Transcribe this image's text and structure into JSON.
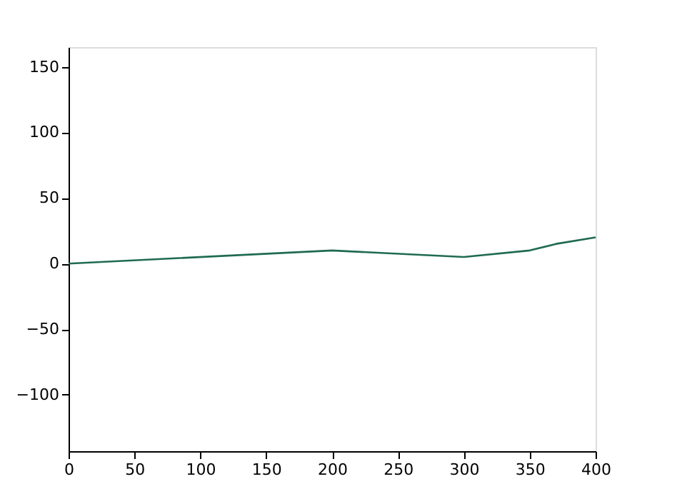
{
  "chart_data": {
    "type": "line",
    "x": [
      0,
      200,
      300,
      350,
      370,
      400
    ],
    "series": [
      {
        "color": "#1f6b4f",
        "values": [
          0,
          10,
          5,
          10,
          15,
          20
        ]
      }
    ],
    "xlim": [
      0,
      400
    ],
    "xticks": [
      0,
      50,
      100,
      150,
      200,
      250,
      300,
      350,
      400
    ],
    "ylim": [
      -143,
      165
    ],
    "yticks": [
      -100,
      -50,
      0,
      50,
      100,
      150
    ],
    "grid": false,
    "marker": "none",
    "line_style": "solid"
  }
}
